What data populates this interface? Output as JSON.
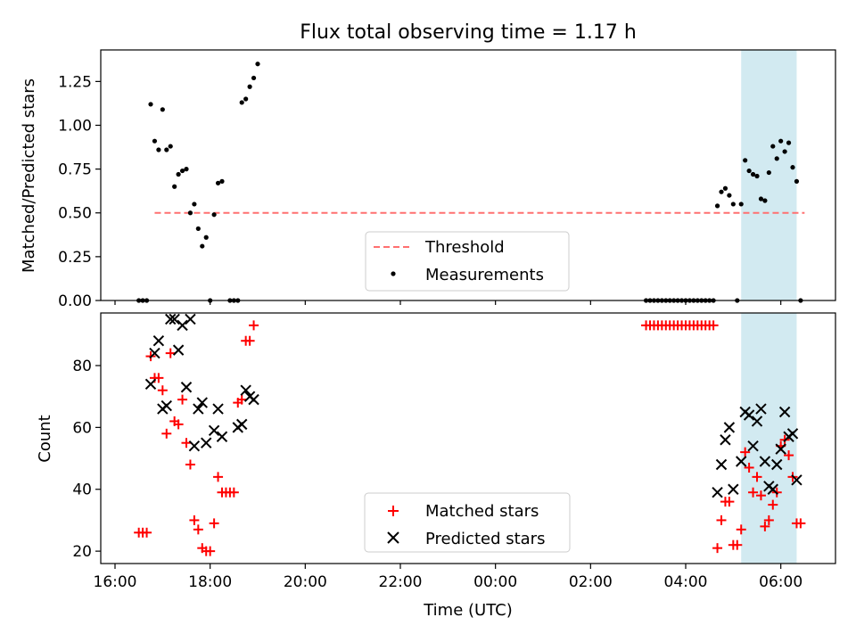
{
  "chart_data": [
    {
      "type": "scatter",
      "title": "Flux total observing time = 1.17 h",
      "xlabel": "",
      "ylabel": "Matched/Predicted stars",
      "xlim": [
        "16:00",
        "07:00"
      ],
      "ylim": [
        0,
        1.43
      ],
      "yticks": [
        "0.00",
        "0.25",
        "0.50",
        "0.75",
        "1.00",
        "1.25"
      ],
      "shaded_region": {
        "start": "05:10",
        "end": "06:20",
        "color": "#add8e6"
      },
      "threshold": {
        "name": "Threshold",
        "value": 0.5,
        "start": "16:50",
        "end": "06:30",
        "color": "#ff7070"
      },
      "legend": {
        "position": "lower center",
        "entries": [
          "Threshold",
          "Measurements"
        ]
      },
      "series": [
        {
          "name": "Measurements",
          "marker": "dot",
          "color": "#000000",
          "points": [
            [
              "16:30",
              0
            ],
            [
              "16:35",
              0
            ],
            [
              "16:40",
              0
            ],
            [
              "16:45",
              1.12
            ],
            [
              "16:50",
              0.91
            ],
            [
              "16:55",
              0.86
            ],
            [
              "17:00",
              1.09
            ],
            [
              "17:05",
              0.86
            ],
            [
              "17:10",
              0.88
            ],
            [
              "17:15",
              0.65
            ],
            [
              "17:20",
              0.72
            ],
            [
              "17:25",
              0.74
            ],
            [
              "17:30",
              0.75
            ],
            [
              "17:35",
              0.5
            ],
            [
              "17:40",
              0.55
            ],
            [
              "17:45",
              0.41
            ],
            [
              "17:50",
              0.31
            ],
            [
              "17:55",
              0.36
            ],
            [
              "18:00",
              0
            ],
            [
              "18:05",
              0.49
            ],
            [
              "18:10",
              0.67
            ],
            [
              "18:15",
              0.68
            ],
            [
              "18:25",
              0
            ],
            [
              "18:30",
              0
            ],
            [
              "18:35",
              0
            ],
            [
              "18:40",
              1.13
            ],
            [
              "18:45",
              1.15
            ],
            [
              "18:50",
              1.22
            ],
            [
              "18:55",
              1.27
            ],
            [
              "19:00",
              1.35
            ],
            [
              "03:10",
              0
            ],
            [
              "03:15",
              0
            ],
            [
              "03:20",
              0
            ],
            [
              "03:25",
              0
            ],
            [
              "03:30",
              0
            ],
            [
              "03:35",
              0
            ],
            [
              "03:40",
              0
            ],
            [
              "03:45",
              0
            ],
            [
              "03:50",
              0
            ],
            [
              "03:55",
              0
            ],
            [
              "04:00",
              0
            ],
            [
              "04:05",
              0
            ],
            [
              "04:10",
              0
            ],
            [
              "04:15",
              0
            ],
            [
              "04:20",
              0
            ],
            [
              "04:25",
              0
            ],
            [
              "04:30",
              0
            ],
            [
              "04:35",
              0
            ],
            [
              "04:40",
              0.54
            ],
            [
              "04:45",
              0.62
            ],
            [
              "04:50",
              0.64
            ],
            [
              "04:55",
              0.6
            ],
            [
              "05:00",
              0.55
            ],
            [
              "05:05",
              0
            ],
            [
              "05:10",
              0.55
            ],
            [
              "05:15",
              0.8
            ],
            [
              "05:20",
              0.74
            ],
            [
              "05:25",
              0.72
            ],
            [
              "05:30",
              0.71
            ],
            [
              "05:35",
              0.58
            ],
            [
              "05:40",
              0.57
            ],
            [
              "05:45",
              0.73
            ],
            [
              "05:50",
              0.88
            ],
            [
              "05:55",
              0.81
            ],
            [
              "06:00",
              0.91
            ],
            [
              "06:05",
              0.85
            ],
            [
              "06:10",
              0.9
            ],
            [
              "06:15",
              0.76
            ],
            [
              "06:20",
              0.68
            ],
            [
              "06:25",
              0
            ]
          ]
        }
      ]
    },
    {
      "type": "scatter",
      "title": "",
      "xlabel": "Time (UTC)",
      "ylabel": "Count",
      "xlim": [
        "16:00",
        "07:00"
      ],
      "ylim": [
        16,
        97
      ],
      "xticks": [
        "16:00",
        "18:00",
        "20:00",
        "22:00",
        "00:00",
        "02:00",
        "04:00",
        "06:00"
      ],
      "yticks": [
        "20",
        "40",
        "60",
        "80"
      ],
      "shaded_region": {
        "start": "05:10",
        "end": "06:20",
        "color": "#add8e6"
      },
      "legend": {
        "position": "lower center",
        "entries": [
          "Matched stars",
          "Predicted stars"
        ]
      },
      "series": [
        {
          "name": "Matched stars",
          "marker": "plus",
          "color": "#ff0000",
          "points": [
            [
              "16:30",
              26
            ],
            [
              "16:35",
              26
            ],
            [
              "16:40",
              26
            ],
            [
              "16:45",
              83
            ],
            [
              "16:50",
              76
            ],
            [
              "16:55",
              76
            ],
            [
              "17:00",
              72
            ],
            [
              "17:05",
              58
            ],
            [
              "17:10",
              84
            ],
            [
              "17:15",
              62
            ],
            [
              "17:20",
              61
            ],
            [
              "17:25",
              69
            ],
            [
              "17:30",
              55
            ],
            [
              "17:35",
              48
            ],
            [
              "17:40",
              30
            ],
            [
              "17:45",
              27
            ],
            [
              "17:50",
              21
            ],
            [
              "17:55",
              20
            ],
            [
              "18:00",
              20
            ],
            [
              "18:05",
              29
            ],
            [
              "18:10",
              44
            ],
            [
              "18:15",
              39
            ],
            [
              "18:20",
              39
            ],
            [
              "18:25",
              39
            ],
            [
              "18:30",
              39
            ],
            [
              "18:35",
              68
            ],
            [
              "18:40",
              69
            ],
            [
              "18:45",
              88
            ],
            [
              "18:50",
              88
            ],
            [
              "18:55",
              93
            ],
            [
              "03:10",
              93
            ],
            [
              "03:15",
              93
            ],
            [
              "03:20",
              93
            ],
            [
              "03:25",
              93
            ],
            [
              "03:30",
              93
            ],
            [
              "03:35",
              93
            ],
            [
              "03:40",
              93
            ],
            [
              "03:45",
              93
            ],
            [
              "03:50",
              93
            ],
            [
              "03:55",
              93
            ],
            [
              "04:00",
              93
            ],
            [
              "04:05",
              93
            ],
            [
              "04:10",
              93
            ],
            [
              "04:15",
              93
            ],
            [
              "04:20",
              93
            ],
            [
              "04:25",
              93
            ],
            [
              "04:30",
              93
            ],
            [
              "04:35",
              93
            ],
            [
              "04:40",
              21
            ],
            [
              "04:45",
              30
            ],
            [
              "04:50",
              36
            ],
            [
              "04:55",
              36
            ],
            [
              "05:00",
              22
            ],
            [
              "05:05",
              22
            ],
            [
              "05:10",
              27
            ],
            [
              "05:15",
              52
            ],
            [
              "05:20",
              47
            ],
            [
              "05:25",
              39
            ],
            [
              "05:30",
              44
            ],
            [
              "05:35",
              38
            ],
            [
              "05:40",
              28
            ],
            [
              "05:45",
              30
            ],
            [
              "05:50",
              35
            ],
            [
              "05:55",
              39
            ],
            [
              "06:00",
              54
            ],
            [
              "06:05",
              56
            ],
            [
              "06:10",
              51
            ],
            [
              "06:15",
              44
            ],
            [
              "06:20",
              29
            ],
            [
              "06:25",
              29
            ]
          ]
        },
        {
          "name": "Predicted stars",
          "marker": "x",
          "color": "#000000",
          "points": [
            [
              "16:45",
              74
            ],
            [
              "16:50",
              84
            ],
            [
              "16:55",
              88
            ],
            [
              "17:00",
              66
            ],
            [
              "17:05",
              67
            ],
            [
              "17:10",
              95
            ],
            [
              "17:15",
              95
            ],
            [
              "17:20",
              85
            ],
            [
              "17:25",
              93
            ],
            [
              "17:30",
              73
            ],
            [
              "17:35",
              95
            ],
            [
              "17:40",
              54
            ],
            [
              "17:45",
              66
            ],
            [
              "17:50",
              68
            ],
            [
              "17:55",
              55
            ],
            [
              "18:05",
              59
            ],
            [
              "18:10",
              66
            ],
            [
              "18:15",
              57
            ],
            [
              "18:35",
              60
            ],
            [
              "18:40",
              61
            ],
            [
              "18:45",
              72
            ],
            [
              "18:50",
              70
            ],
            [
              "18:55",
              69
            ],
            [
              "04:40",
              39
            ],
            [
              "04:45",
              48
            ],
            [
              "04:50",
              56
            ],
            [
              "04:55",
              60
            ],
            [
              "05:00",
              40
            ],
            [
              "05:10",
              49
            ],
            [
              "05:15",
              65
            ],
            [
              "05:20",
              64
            ],
            [
              "05:25",
              54
            ],
            [
              "05:30",
              62
            ],
            [
              "05:35",
              66
            ],
            [
              "05:40",
              49
            ],
            [
              "05:45",
              41
            ],
            [
              "05:50",
              40
            ],
            [
              "05:55",
              48
            ],
            [
              "06:00",
              53
            ],
            [
              "06:05",
              65
            ],
            [
              "06:10",
              57
            ],
            [
              "06:15",
              58
            ],
            [
              "06:20",
              43
            ]
          ]
        }
      ]
    }
  ]
}
